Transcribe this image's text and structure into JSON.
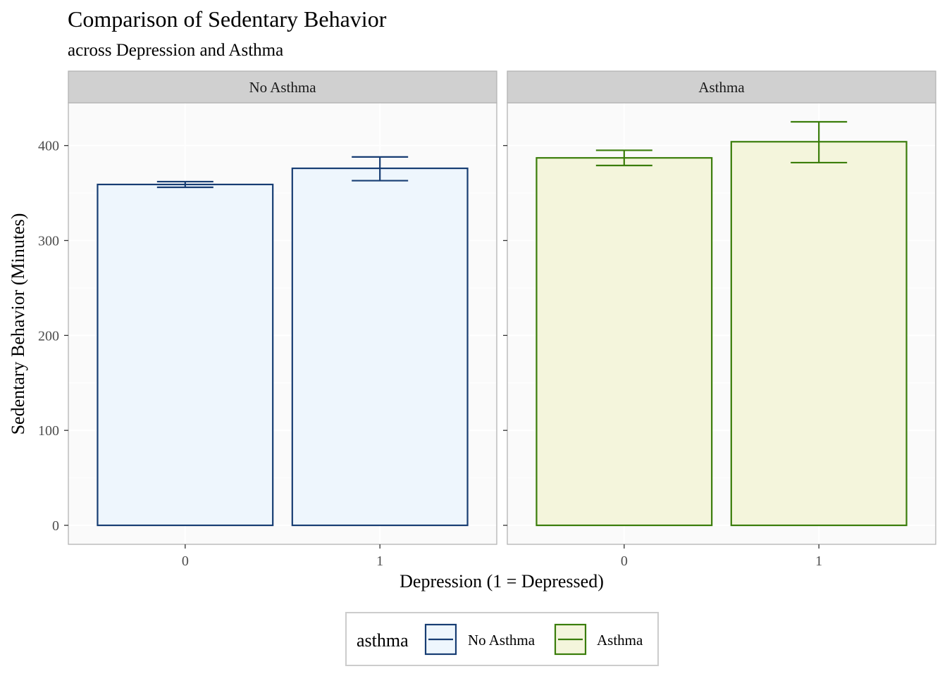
{
  "chart_data": {
    "type": "bar",
    "title": "Comparison of Sedentary Behavior",
    "subtitle": "across Depression and Asthma",
    "xlabel": "Depression (1 = Depressed)",
    "ylabel": "Sedentary Behavior (Minutes)",
    "ylim": [
      -20,
      445
    ],
    "yticks": [
      0,
      100,
      200,
      300,
      400
    ],
    "categories": [
      "0",
      "1"
    ],
    "grid": true,
    "legend_position": "bottom",
    "legend_title": "asthma",
    "panels": [
      {
        "label": "No Asthma",
        "series": "No Asthma",
        "values": [
          359,
          376
        ],
        "error_low": [
          356,
          363
        ],
        "error_high": [
          362,
          388
        ]
      },
      {
        "label": "Asthma",
        "series": "Asthma",
        "values": [
          387,
          404
        ],
        "error_low": [
          379,
          382
        ],
        "error_high": [
          395,
          425
        ]
      }
    ],
    "series": [
      {
        "name": "No Asthma",
        "stroke": "#173d73",
        "fill": "#eef6fd"
      },
      {
        "name": "Asthma",
        "stroke": "#3a7d0a",
        "fill": "#f4f5dc"
      }
    ]
  }
}
